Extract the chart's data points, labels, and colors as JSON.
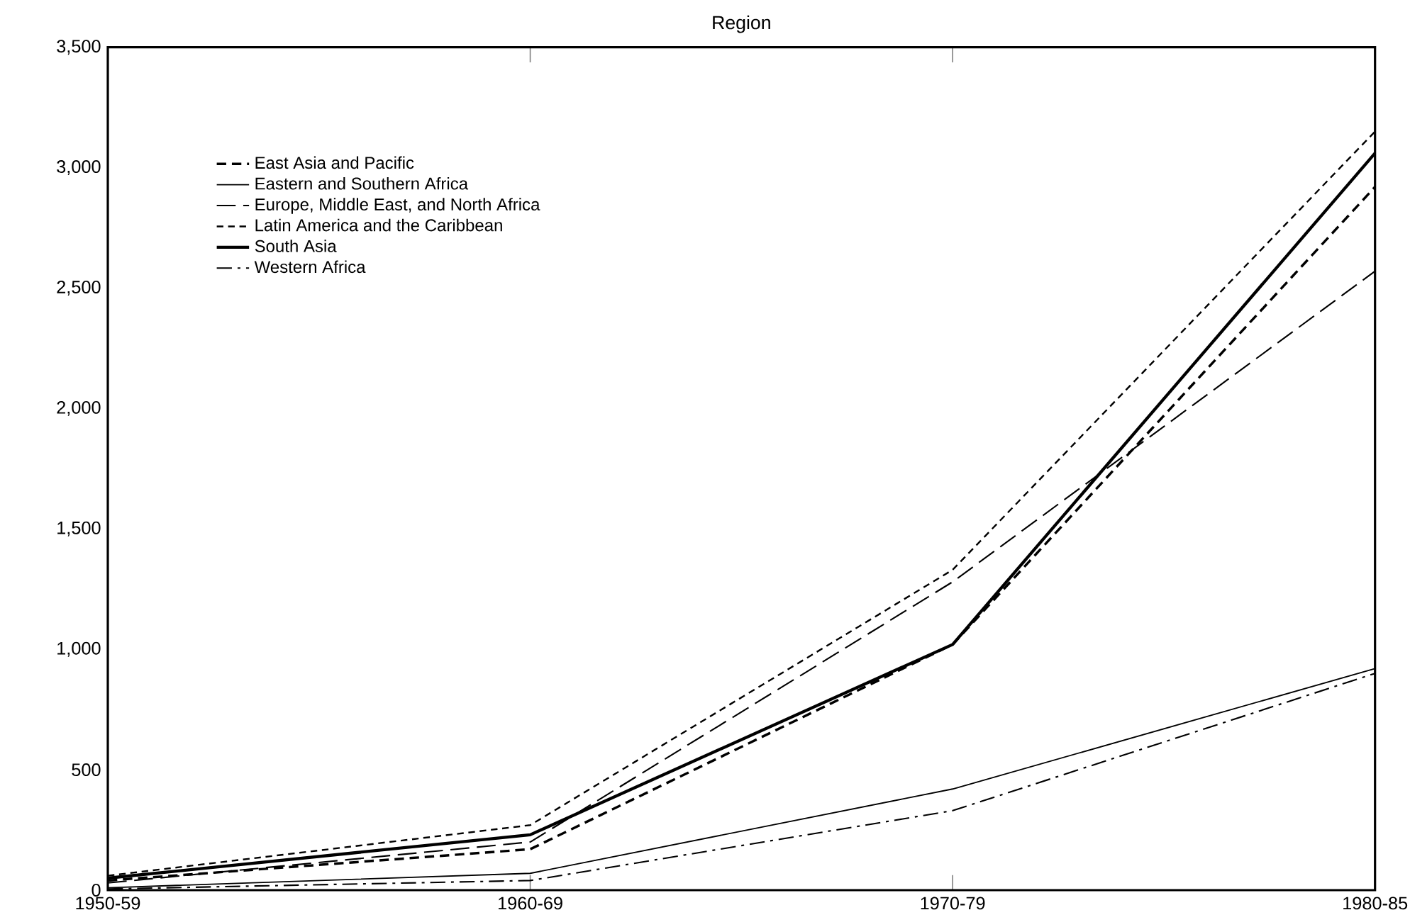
{
  "chart_data": {
    "type": "line",
    "title": "Region",
    "categories": [
      "1950-59",
      "1960-69",
      "1970-79",
      "1980-85"
    ],
    "series": [
      {
        "name": "East Asia and Pacific",
        "color": "#000000",
        "line_style": "dashed",
        "values": [
          40,
          170,
          1020,
          2920
        ]
      },
      {
        "name": "Eastern and Southern Africa",
        "color": "#000000",
        "line_style": "solid",
        "values": [
          10,
          70,
          420,
          920
        ]
      },
      {
        "name": "Europe, Middle East, and North Africa",
        "color": "#000000",
        "line_style": "long dashed",
        "values": [
          30,
          200,
          1280,
          2570
        ]
      },
      {
        "name": "Latin America and the Caribbean",
        "color": "#000000",
        "line_style": "densely dashed",
        "values": [
          60,
          270,
          1330,
          3150
        ]
      },
      {
        "name": "South Asia",
        "color": "#000000",
        "line_style": "solid",
        "values": [
          50,
          230,
          1020,
          3060
        ]
      },
      {
        "name": "Western Africa",
        "color": "#000000",
        "line_style": "dash dot",
        "values": [
          5,
          40,
          330,
          900
        ]
      }
    ],
    "ylim": [
      0,
      3500
    ],
    "yticks": [
      0,
      {
        "value": 500,
        "label": "500"
      },
      {
        "value": 1000,
        "label": "1,000"
      },
      {
        "value": 1500,
        "label": "1,500"
      },
      {
        "value": 2000,
        "label": "2,000"
      },
      {
        "value": 2500,
        "label": "2,500"
      },
      {
        "value": 3000,
        "label": "3,000"
      },
      {
        "value": 3500,
        "label": "3,500"
      }
    ],
    "legend": "top left",
    "grid": false,
    "marker": "none"
  }
}
